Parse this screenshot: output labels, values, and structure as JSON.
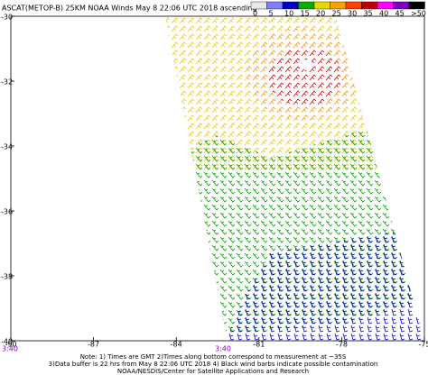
{
  "header": {
    "title": "ASCAT(METOP-B) 25KM NOAA Winds May  8 22:06 UTC 2018 ascending"
  },
  "colorbar": {
    "labels": [
      0,
      5,
      10,
      15,
      20,
      25,
      30,
      35,
      40,
      45,
      ">50 knots"
    ],
    "colors": [
      "#e8e8e8",
      "#8080ff",
      "#0000cc",
      "#00b000",
      "#e8d800",
      "#ffa000",
      "#ff4000",
      "#c00000",
      "#ff00ff",
      "#8000c0",
      "#000000"
    ]
  },
  "axes": {
    "lat_labels": [
      -30,
      -32,
      -34,
      -36,
      -38,
      -40
    ],
    "lat_range": [
      -30,
      -40
    ],
    "lon_labels": [
      -90,
      -87,
      -84,
      -81,
      -78,
      -75
    ],
    "lon_range": [
      -90,
      -75
    ]
  },
  "times": [
    "3:40",
    "3:40"
  ],
  "notes": [
    "Note: 1) Times are GMT 2)Times along bottom correspond to measurement at ~35S",
    "3)Data buffer is 22 hrs from May  8 22:06 UTC 2018 4) Black wind barbs indicate possible contamination",
    "NOAA/NESDIS/Center for Satellite Applications and Research"
  ]
}
